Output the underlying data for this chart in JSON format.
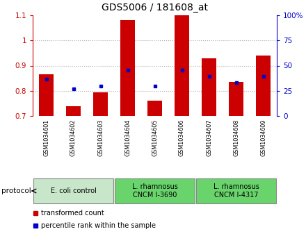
{
  "title": "GDS5006 / 181608_at",
  "samples": [
    "GSM1034601",
    "GSM1034602",
    "GSM1034603",
    "GSM1034604",
    "GSM1034605",
    "GSM1034606",
    "GSM1034607",
    "GSM1034608",
    "GSM1034609"
  ],
  "transformed_count": [
    0.865,
    0.74,
    0.795,
    1.08,
    0.76,
    1.1,
    0.93,
    0.835,
    0.94
  ],
  "percentile_rank": [
    0.845,
    0.808,
    0.82,
    0.882,
    0.82,
    0.882,
    0.858,
    0.832,
    0.858
  ],
  "ylim_left": [
    0.7,
    1.1
  ],
  "ylim_right": [
    0,
    100
  ],
  "yticks_left": [
    0.7,
    0.8,
    0.9,
    1.0,
    1.1
  ],
  "yticks_right": [
    0,
    25,
    50,
    75,
    100
  ],
  "ytick_labels_left": [
    "0.7",
    "0.8",
    "0.9",
    "1",
    "1.1"
  ],
  "ytick_labels_right": [
    "0",
    "25",
    "50",
    "75",
    "100%"
  ],
  "protocols": [
    {
      "label": "E. coli control",
      "start": 0,
      "end": 3,
      "color": "#c8e6c9"
    },
    {
      "label": "L. rhamnosus\nCNCM I-3690",
      "start": 3,
      "end": 6,
      "color": "#69d46c"
    },
    {
      "label": "L. rhamnosus\nCNCM I-4317",
      "start": 6,
      "end": 9,
      "color": "#69d46c"
    }
  ],
  "bar_color": "#cc0000",
  "dot_color": "#0000cc",
  "bar_width": 0.55,
  "grid_color": "#aaaaaa",
  "background_color": "#ffffff",
  "sample_area_color": "#c8c8c8",
  "sample_divider_color": "#ffffff",
  "legend_items": [
    {
      "color": "#cc0000",
      "label": "transformed count"
    },
    {
      "color": "#0000cc",
      "label": "percentile rank within the sample"
    }
  ],
  "protocol_label": "protocol"
}
